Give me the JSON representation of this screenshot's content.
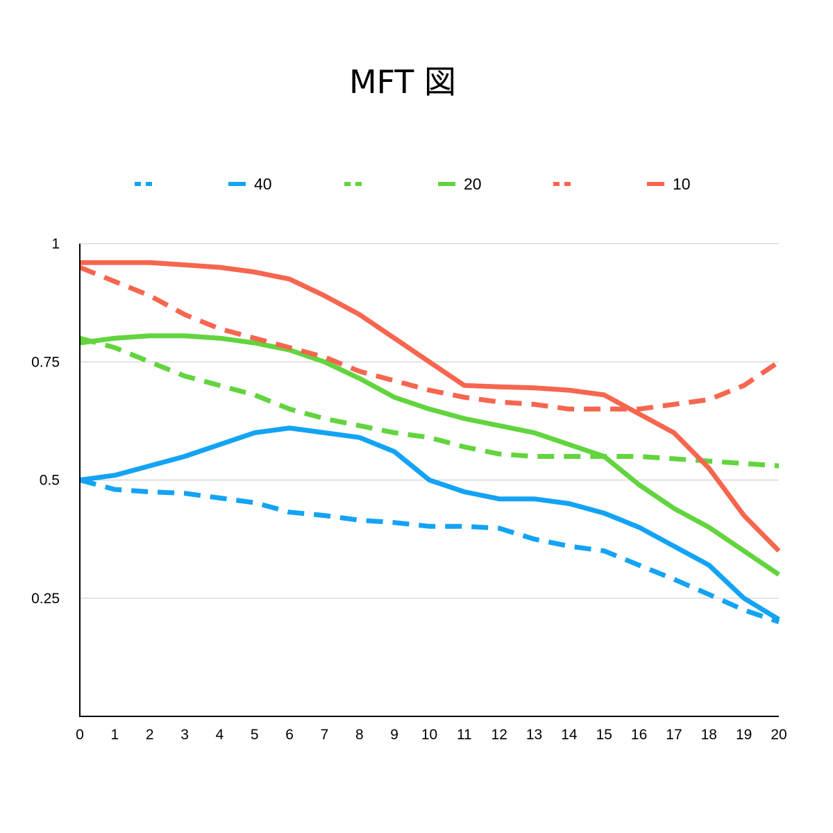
{
  "chart_data": {
    "type": "line",
    "title": "MFT 図",
    "xlabel": "",
    "ylabel": "",
    "x": [
      0,
      1,
      2,
      3,
      4,
      5,
      6,
      7,
      8,
      9,
      10,
      11,
      12,
      13,
      14,
      15,
      16,
      17,
      18,
      19,
      20
    ],
    "xlim": [
      0,
      20
    ],
    "ylim": [
      0,
      1
    ],
    "x_tick_labels": [
      "0",
      "1",
      "2",
      "3",
      "4",
      "5",
      "6",
      "7",
      "8",
      "9",
      "10",
      "11",
      "12",
      "13",
      "14",
      "15",
      "16",
      "17",
      "18",
      "19",
      "20"
    ],
    "y_ticks": [
      {
        "value": 0.25,
        "label": "0.25"
      },
      {
        "value": 0.5,
        "label": "0.5"
      },
      {
        "value": 0.75,
        "label": "0.75"
      },
      {
        "value": 1,
        "label": "1"
      }
    ],
    "grid": true,
    "legend_position": "top",
    "series": [
      {
        "name": "",
        "dash": "dashed",
        "color": "#13A3F4",
        "values": [
          0.5,
          0.48,
          0.475,
          0.472,
          0.462,
          0.452,
          0.432,
          0.425,
          0.415,
          0.41,
          0.402,
          0.402,
          0.398,
          0.375,
          0.36,
          0.35,
          0.32,
          0.29,
          0.258,
          0.225,
          0.2
        ]
      },
      {
        "name": "40",
        "dash": "solid",
        "color": "#13A3F4",
        "values": [
          0.5,
          0.51,
          0.53,
          0.55,
          0.575,
          0.6,
          0.61,
          0.6,
          0.59,
          0.56,
          0.5,
          0.475,
          0.46,
          0.46,
          0.45,
          0.43,
          0.4,
          0.36,
          0.32,
          0.25,
          0.205
        ]
      },
      {
        "name": "",
        "dash": "dashed",
        "color": "#62D43E",
        "values": [
          0.8,
          0.78,
          0.75,
          0.72,
          0.7,
          0.68,
          0.65,
          0.63,
          0.615,
          0.6,
          0.59,
          0.57,
          0.555,
          0.55,
          0.55,
          0.55,
          0.55,
          0.545,
          0.54,
          0.535,
          0.53
        ]
      },
      {
        "name": "20",
        "dash": "solid",
        "color": "#62D43E",
        "values": [
          0.79,
          0.8,
          0.805,
          0.805,
          0.8,
          0.79,
          0.775,
          0.75,
          0.715,
          0.675,
          0.65,
          0.63,
          0.615,
          0.6,
          0.575,
          0.55,
          0.49,
          0.44,
          0.4,
          0.35,
          0.3
        ]
      },
      {
        "name": "",
        "dash": "dashed",
        "color": "#F6664F",
        "values": [
          0.95,
          0.92,
          0.89,
          0.85,
          0.82,
          0.8,
          0.78,
          0.76,
          0.73,
          0.71,
          0.69,
          0.675,
          0.665,
          0.66,
          0.65,
          0.65,
          0.65,
          0.66,
          0.67,
          0.7,
          0.75
        ]
      },
      {
        "name": "10",
        "dash": "solid",
        "color": "#F6664F",
        "values": [
          0.96,
          0.96,
          0.96,
          0.955,
          0.95,
          0.94,
          0.925,
          0.89,
          0.85,
          0.8,
          0.75,
          0.7,
          0.697,
          0.695,
          0.69,
          0.68,
          0.64,
          0.6,
          0.525,
          0.425,
          0.35
        ]
      }
    ]
  }
}
